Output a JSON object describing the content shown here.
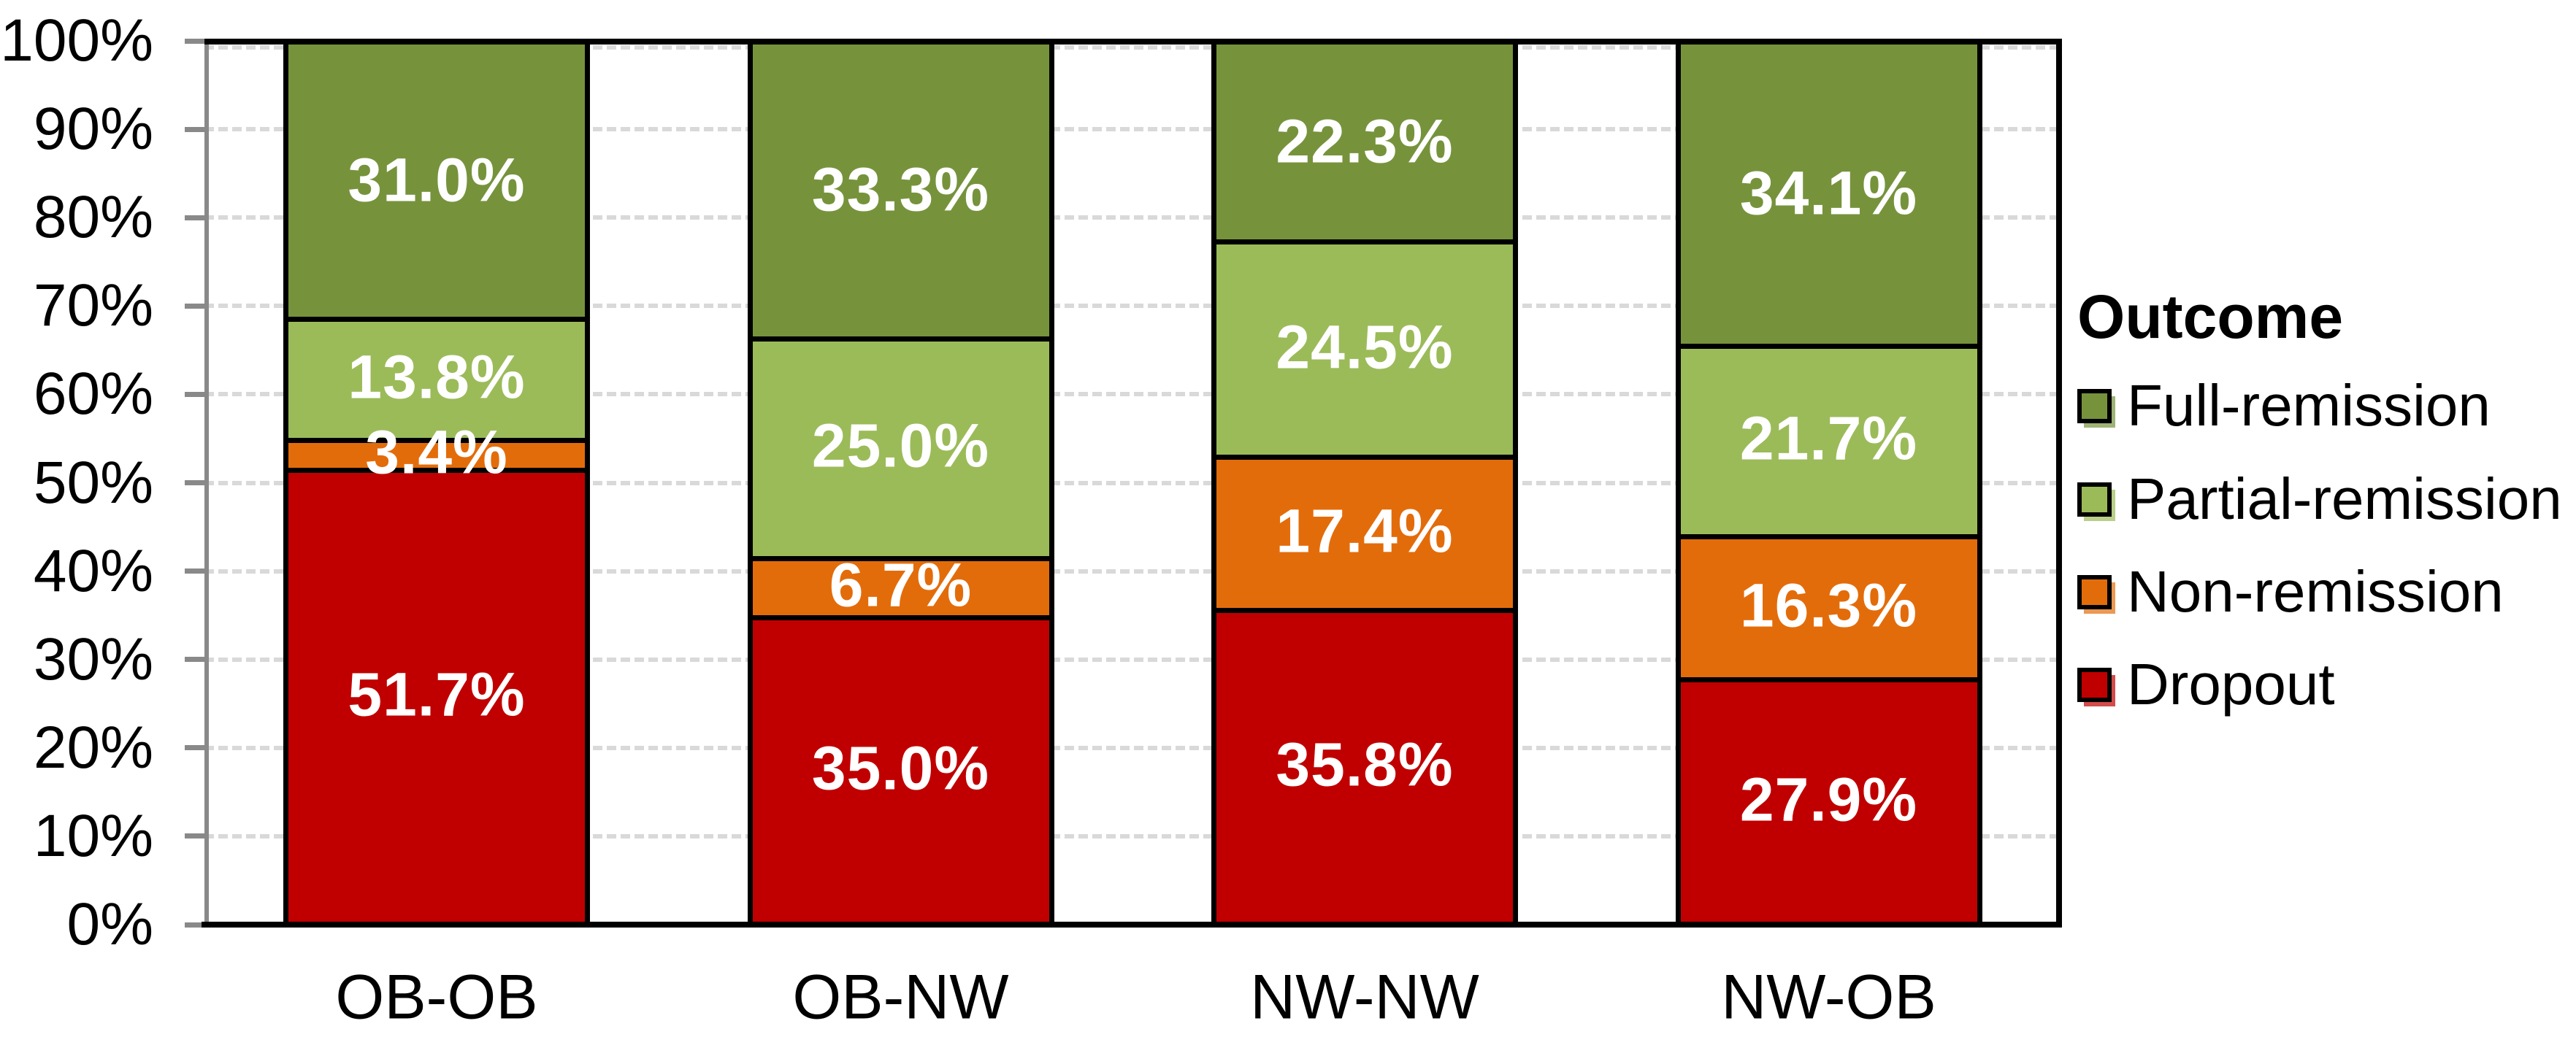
{
  "chart_data": {
    "type": "bar",
    "subtype": "100-percent-stacked-column",
    "categories": [
      "OB-OB",
      "OB-NW",
      "NW-NW",
      "NW-OB"
    ],
    "series": [
      {
        "name": "Dropout",
        "color": "#C00000",
        "values": [
          51.7,
          35.0,
          35.8,
          27.9
        ]
      },
      {
        "name": "Non-remission",
        "color": "#E36C0A",
        "values": [
          3.4,
          6.7,
          17.4,
          16.3
        ]
      },
      {
        "name": "Partial-remission",
        "color": "#9BBB59",
        "values": [
          13.8,
          25.0,
          24.5,
          21.7
        ]
      },
      {
        "name": "Full-remission",
        "color": "#76933C",
        "values": [
          31.0,
          33.3,
          22.3,
          34.1
        ]
      }
    ],
    "stack_order_bottom_to_top": [
      "Dropout",
      "Non-remission",
      "Partial-remission",
      "Full-remission"
    ],
    "data_labels": {
      "format": "0.0%",
      "color": "#FFFFFF",
      "values_by_category": {
        "OB-OB": [
          "51.7%",
          "3.4%",
          "13.8%",
          "31.0%"
        ],
        "OB-NW": [
          "35.0%",
          "6.7%",
          "25.0%",
          "33.3%"
        ],
        "NW-NW": [
          "35.8%",
          "17.4%",
          "24.5%",
          "22.3%"
        ],
        "NW-OB": [
          "27.9%",
          "16.3%",
          "21.7%",
          "34.1%"
        ]
      }
    },
    "y_axis": {
      "min": 0,
      "max": 100,
      "tick_step": 10,
      "tick_labels": [
        "0%",
        "10%",
        "20%",
        "30%",
        "40%",
        "50%",
        "60%",
        "70%",
        "80%",
        "90%",
        "100%"
      ],
      "axis_color": "#898989"
    },
    "x_axis": {
      "labels": [
        "OB-OB",
        "OB-NW",
        "NW-NW",
        "NW-OB"
      ],
      "axis_color": "#000000"
    },
    "legend": {
      "title": "Outcome",
      "position": "right",
      "items": [
        {
          "label": "Full-remission",
          "color": "#76933C"
        },
        {
          "label": "Partial-remission",
          "color": "#9BBB59"
        },
        {
          "label": "Non-remission",
          "color": "#E36C0A"
        },
        {
          "label": "Dropout",
          "color": "#C00000"
        }
      ]
    },
    "gridlines": {
      "style": "dashed",
      "color": "#D9D9D9"
    },
    "plot_border_color": "#000000",
    "background_color": "#FFFFFF"
  }
}
